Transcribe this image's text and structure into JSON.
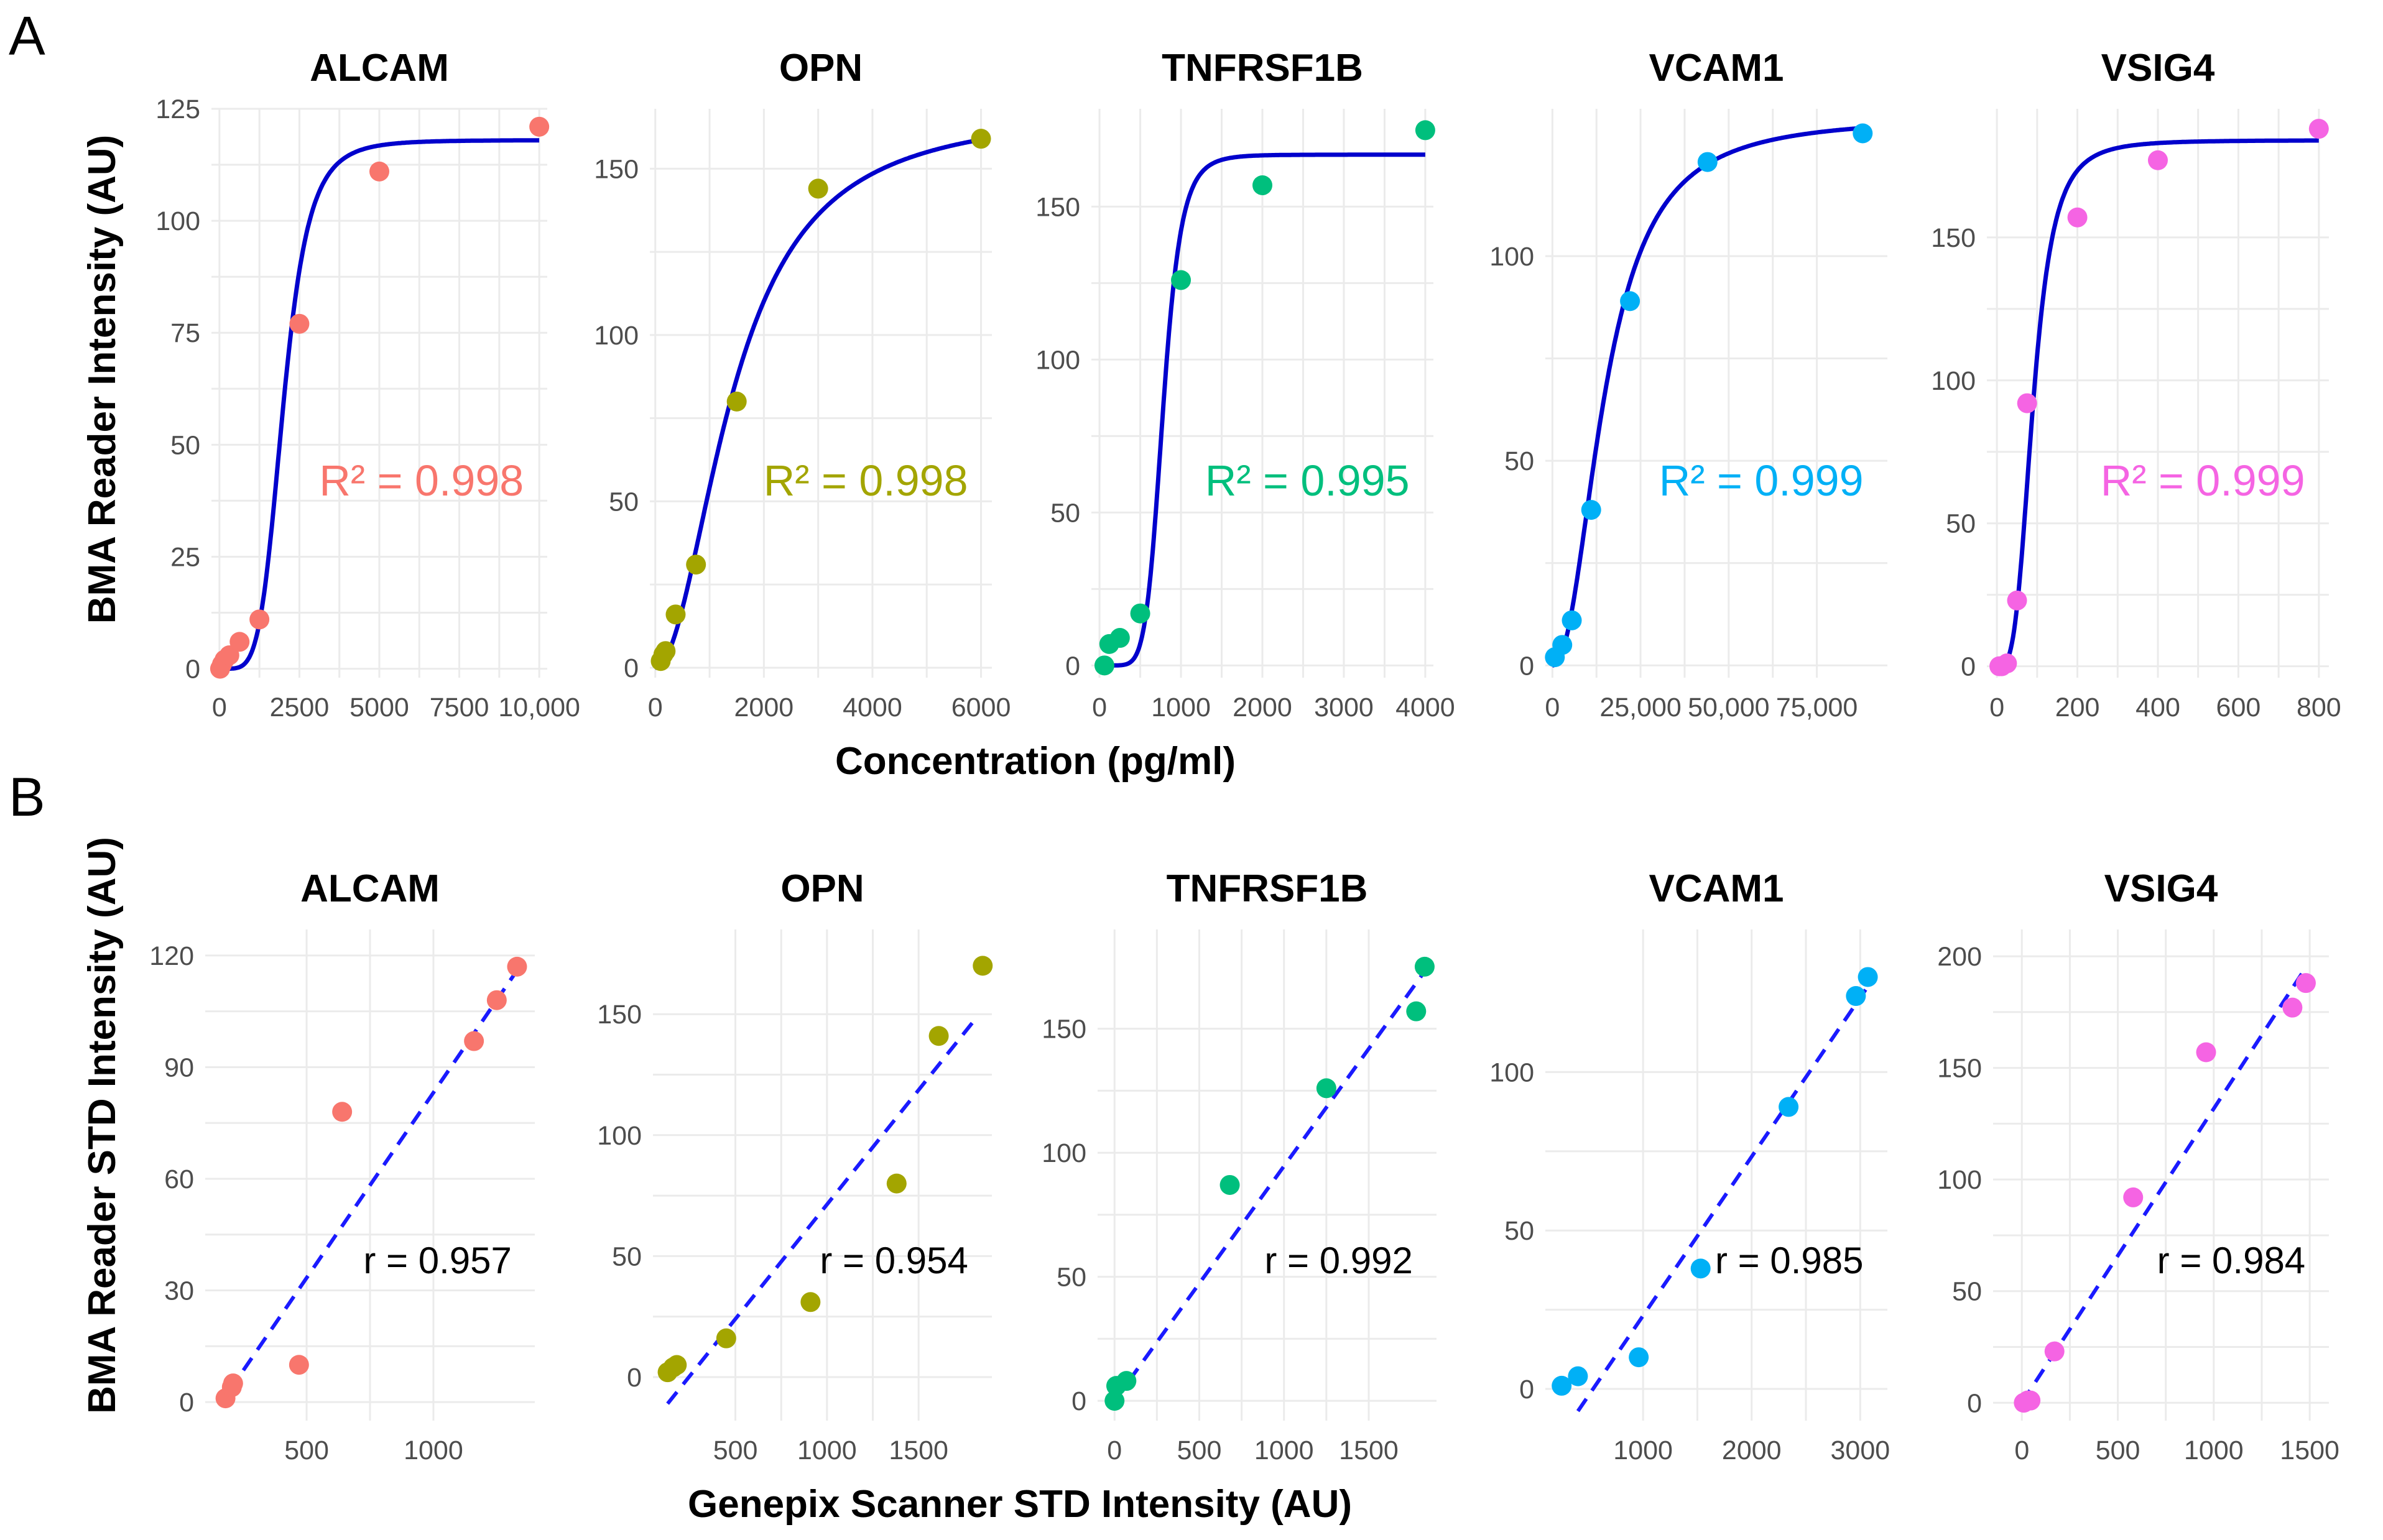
{
  "figure": {
    "panel_a_label": "A",
    "panel_b_label": "B",
    "row_a_xlabel": "Concentration (pg/ml)",
    "row_a_ylabel": "BMA Reader Intensity (AU)",
    "row_b_xlabel": "Genepix Scanner STD Intensity (AU)",
    "row_b_ylabel": "BMA Reader STD Intensity (AU)",
    "curve_color": "#0000cc",
    "regression_color": "#1a1aff"
  },
  "chart_data": [
    {
      "type": "scatter",
      "row": "A",
      "title": "ALCAM",
      "color": "#f8766d",
      "annotation": "R² = 0.998",
      "xlim": [
        -250,
        10250
      ],
      "ylim": [
        -2,
        125
      ],
      "xticks": [
        0,
        2500,
        5000,
        7500,
        10000
      ],
      "xtick_labels": [
        "0",
        "2500",
        "5000",
        "7500",
        "10,000"
      ],
      "yticks": [
        0,
        25,
        50,
        75,
        100,
        125
      ],
      "ytick_labels": [
        "0",
        "25",
        "50",
        "75",
        "100",
        "125"
      ],
      "fit": {
        "bottom": 0,
        "top": 118,
        "ec50": 2000,
        "hill": 5
      },
      "x": [
        20,
        80,
        160,
        310,
        630,
        1250,
        2500,
        5000,
        10000
      ],
      "y": [
        0,
        1,
        2,
        3,
        6,
        11,
        77,
        111,
        121
      ]
    },
    {
      "type": "scatter",
      "row": "A",
      "title": "OPN",
      "color": "#a3a500",
      "annotation": "R² = 0.998",
      "xlim": [
        -100,
        6200
      ],
      "ylim": [
        -3,
        168
      ],
      "xticks": [
        0,
        2000,
        4000,
        6000
      ],
      "xtick_labels": [
        "0",
        "2000",
        "4000",
        "6000"
      ],
      "yticks": [
        0,
        50,
        100,
        150
      ],
      "ytick_labels": [
        "0",
        "50",
        "100",
        "150"
      ],
      "fit": {
        "bottom": 0,
        "top": 168,
        "ec50": 1450,
        "hill": 2
      },
      "x": [
        100,
        150,
        190,
        375,
        750,
        1500,
        3000,
        6000
      ],
      "y": [
        2,
        4,
        5,
        16,
        31,
        80,
        144,
        159
      ]
    },
    {
      "type": "scatter",
      "row": "A",
      "title": "TNFRSF1B",
      "color": "#00bf7d",
      "annotation": "R² = 0.995",
      "xlim": [
        -100,
        4100
      ],
      "ylim": [
        -4,
        182
      ],
      "xticks": [
        0,
        1000,
        2000,
        3000,
        4000
      ],
      "xtick_labels": [
        "0",
        "1000",
        "2000",
        "3000",
        "4000"
      ],
      "yticks": [
        0,
        50,
        100,
        150
      ],
      "ytick_labels": [
        "0",
        "50",
        "100",
        "150"
      ],
      "fit": {
        "bottom": 0,
        "top": 167,
        "ec50": 780,
        "hill": 7
      },
      "x": [
        60,
        120,
        250,
        500,
        1000,
        2000,
        4000
      ],
      "y": [
        0,
        7,
        9,
        17,
        126,
        157,
        175
      ]
    },
    {
      "type": "scatter",
      "row": "A",
      "title": "VCAM1",
      "color": "#00b0f6",
      "annotation": "R² = 0.999",
      "xlim": [
        -2000,
        95000
      ],
      "ylim": [
        -3,
        136
      ],
      "xticks": [
        0,
        25000,
        50000,
        75000
      ],
      "xtick_labels": [
        "0",
        "25,000",
        "50,000",
        "75,000"
      ],
      "yticks": [
        0,
        50,
        100
      ],
      "ytick_labels": [
        "0",
        "50",
        "100"
      ],
      "fit": {
        "bottom": 0,
        "top": 134,
        "ec50": 15000,
        "hill": 2.2
      },
      "x": [
        700,
        2800,
        5500,
        11000,
        22000,
        44000,
        88000
      ],
      "y": [
        2,
        5,
        11,
        38,
        89,
        123,
        130
      ]
    },
    {
      "type": "scatter",
      "row": "A",
      "title": "VSIG4",
      "color": "#f564e3",
      "annotation": "R² = 0.999",
      "xlim": [
        -25,
        825
      ],
      "ylim": [
        -4,
        195
      ],
      "xticks": [
        0,
        200,
        400,
        600,
        800
      ],
      "xtick_labels": [
        "0",
        "200",
        "400",
        "600",
        "800"
      ],
      "yticks": [
        0,
        50,
        100,
        150
      ],
      "ytick_labels": [
        "0",
        "50",
        "100",
        "150"
      ],
      "fit": {
        "bottom": 0,
        "top": 184,
        "ec50": 90,
        "hill": 3.5
      },
      "x": [
        6,
        12,
        25,
        50,
        75,
        200,
        400,
        800
      ],
      "y": [
        0,
        0,
        1,
        23,
        92,
        157,
        177,
        188
      ]
    },
    {
      "type": "scatter",
      "row": "B",
      "title": "ALCAM",
      "color": "#f8766d",
      "annotation": "r = 0.957",
      "xlim": [
        100,
        1400
      ],
      "ylim": [
        -5,
        127
      ],
      "xticks": [
        500,
        1000
      ],
      "xtick_labels": [
        "500",
        "1000"
      ],
      "yticks": [
        0,
        30,
        60,
        90,
        120
      ],
      "ytick_labels": [
        "0",
        "30",
        "60",
        "90",
        "120"
      ],
      "regression": {
        "x": [
          195,
          1340
        ],
        "y": [
          3,
          117
        ]
      },
      "x": [
        180,
        205,
        210,
        470,
        640,
        1160,
        1250,
        1330
      ],
      "y": [
        1,
        4,
        5,
        10,
        78,
        97,
        108,
        117
      ]
    },
    {
      "type": "scatter",
      "row": "B",
      "title": "OPN",
      "color": "#a3a500",
      "annotation": "r = 0.954",
      "xlim": [
        50,
        1900
      ],
      "ylim": [
        -18,
        185
      ],
      "xticks": [
        500,
        1000,
        1500
      ],
      "xtick_labels": [
        "500",
        "1000",
        "1500"
      ],
      "yticks": [
        0,
        50,
        100,
        150
      ],
      "ytick_labels": [
        "0",
        "50",
        "100",
        "150"
      ],
      "regression": {
        "x": [
          130,
          1810
        ],
        "y": [
          -11,
          148
        ]
      },
      "x": [
        130,
        160,
        180,
        450,
        910,
        1380,
        1610,
        1850
      ],
      "y": [
        2,
        4,
        5,
        16,
        31,
        80,
        141,
        170
      ]
    },
    {
      "type": "scatter",
      "row": "B",
      "title": "TNFRSF1B",
      "color": "#00bf7d",
      "annotation": "r = 0.992",
      "xlim": [
        -100,
        1900
      ],
      "ylim": [
        -8,
        190
      ],
      "xticks": [
        0,
        500,
        1000,
        1500
      ],
      "xtick_labels": [
        "0",
        "500",
        "1000",
        "1500"
      ],
      "yticks": [
        0,
        50,
        100,
        150
      ],
      "ytick_labels": [
        "0",
        "50",
        "100",
        "150"
      ],
      "regression": {
        "x": [
          0,
          1850
        ],
        "y": [
          0,
          175
        ]
      },
      "x": [
        0,
        10,
        70,
        680,
        1250,
        1780,
        1830
      ],
      "y": [
        0,
        6,
        8,
        87,
        126,
        157,
        175
      ]
    },
    {
      "type": "scatter",
      "row": "B",
      "title": "VCAM1",
      "color": "#00b0f6",
      "annotation": "r = 0.985",
      "xlim": [
        100,
        3250
      ],
      "ylim": [
        -10,
        145
      ],
      "xticks": [
        1000,
        2000,
        3000
      ],
      "xtick_labels": [
        "1000",
        "2000",
        "3000"
      ],
      "yticks": [
        0,
        50,
        100
      ],
      "ytick_labels": [
        "0",
        "50",
        "100"
      ],
      "regression": {
        "x": [
          400,
          3050
        ],
        "y": [
          -7,
          126
        ]
      },
      "x": [
        250,
        400,
        960,
        1530,
        2340,
        2960,
        3070
      ],
      "y": [
        1,
        4,
        10,
        38,
        89,
        124,
        130
      ]
    },
    {
      "type": "scatter",
      "row": "B",
      "title": "VSIG4",
      "color": "#f564e3",
      "annotation": "r = 0.984",
      "xlim": [
        -150,
        1600
      ],
      "ylim": [
        -8,
        212
      ],
      "xticks": [
        0,
        500,
        1000,
        1500
      ],
      "xtick_labels": [
        "0",
        "500",
        "1000",
        "1500"
      ],
      "yticks": [
        0,
        50,
        100,
        150,
        200
      ],
      "ytick_labels": [
        "0",
        "50",
        "100",
        "150",
        "200"
      ],
      "regression": {
        "x": [
          0,
          1480
        ],
        "y": [
          0,
          195
        ]
      },
      "x": [
        10,
        30,
        45,
        170,
        580,
        960,
        1410,
        1480
      ],
      "y": [
        0,
        1,
        1,
        23,
        92,
        157,
        177,
        188
      ]
    }
  ]
}
